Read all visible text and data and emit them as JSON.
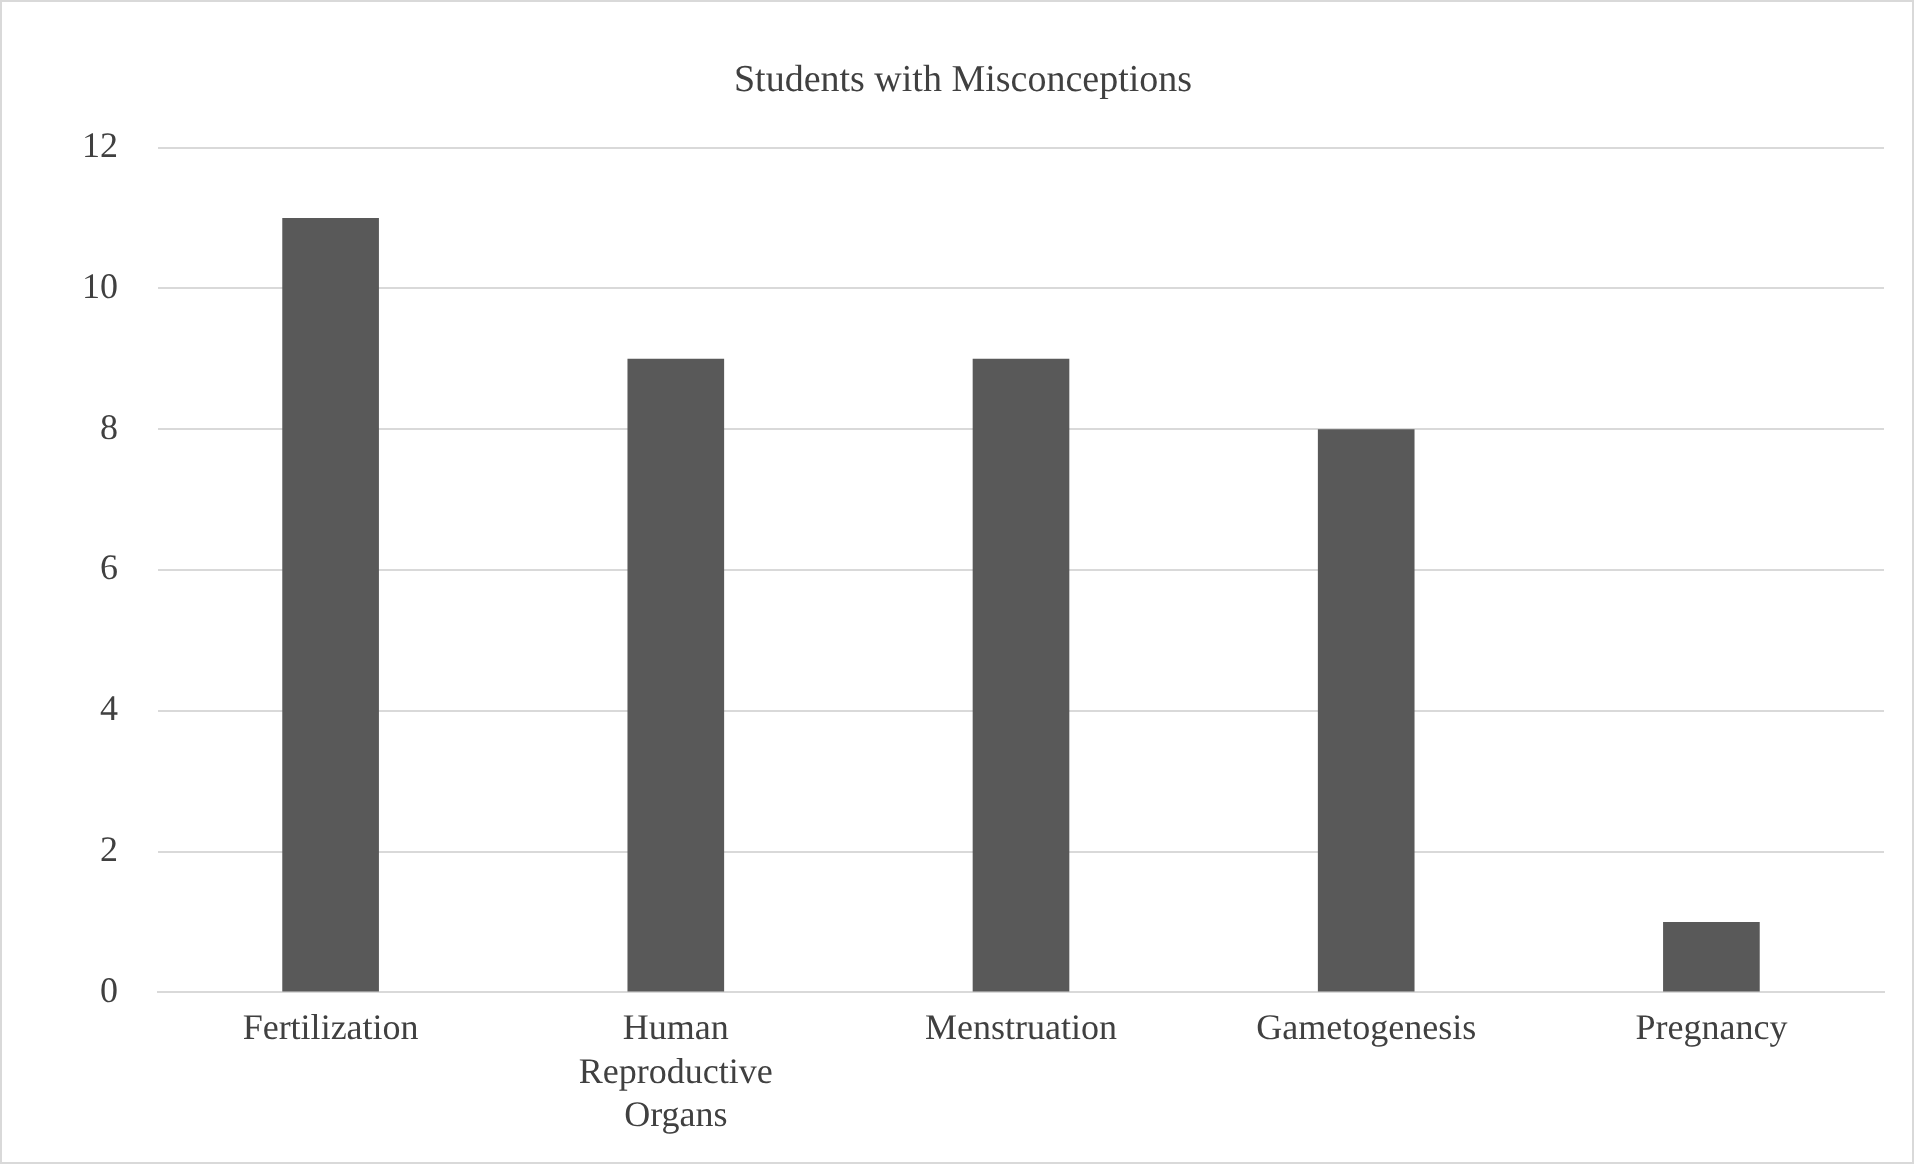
{
  "chart_data": {
    "type": "bar",
    "title": "Students with Misconceptions",
    "categories": [
      "Fertilization",
      "Human Reproductive Organs",
      "Menstruation",
      "Gametogenesis",
      "Pregnancy"
    ],
    "values": [
      11,
      9,
      9,
      8,
      1
    ],
    "color": "#595959",
    "ylim": [
      0,
      12
    ],
    "yticks": [
      0,
      2,
      4,
      6,
      8,
      10,
      12
    ],
    "grid": "y",
    "legend": false
  }
}
